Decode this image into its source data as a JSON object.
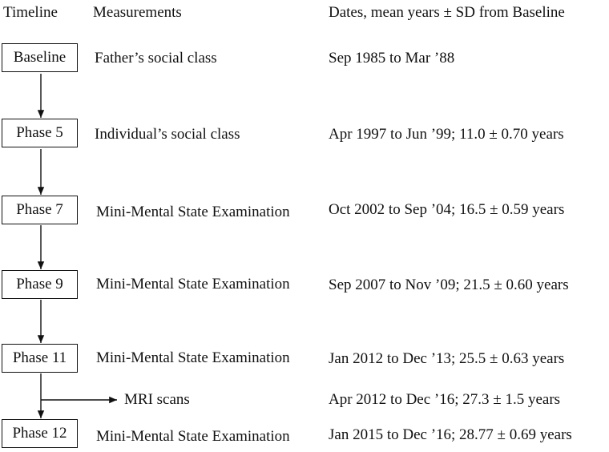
{
  "headers": {
    "timeline": "Timeline",
    "measurements": "Measurements",
    "dates": "Dates, mean years ± SD from Baseline"
  },
  "rows": [
    {
      "phase": "Baseline",
      "measurement": "Father’s social class",
      "dates": "Sep 1985 to Mar ’88"
    },
    {
      "phase": "Phase 5",
      "measurement": "Individual’s social class",
      "dates": "Apr 1997 to Jun ’99; 11.0 ± 0.70 years"
    },
    {
      "phase": "Phase 7",
      "measurement": "Mini-Mental State Examination",
      "dates": "Oct 2002 to Sep ’04; 16.5 ± 0.59 years"
    },
    {
      "phase": "Phase 9",
      "measurement": "Mini-Mental State Examination",
      "dates": "Sep 2007 to Nov ’09; 21.5 ± 0.60 years"
    },
    {
      "phase": "Phase 11",
      "measurement": "Mini-Mental State Examination",
      "dates": "Jan 2012 to Dec ’13; 25.5 ± 0.63 years"
    },
    {
      "phase": "Phase 12",
      "measurement": "Mini-Mental State Examination",
      "dates": "Jan 2015 to Dec ’16; 28.77 ± 0.69 years"
    }
  ],
  "branch": {
    "measurement": "MRI scans",
    "dates": "Apr 2012 to Dec ’16; 27.3 ± 1.5 years"
  }
}
